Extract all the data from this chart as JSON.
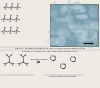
{
  "bg_color": "#eeebe5",
  "line_color": "#333333",
  "text_color": "#222222",
  "img_colors": [
    "#8eaab8",
    "#a0bbc8",
    "#b0ccd8",
    "#7899a8",
    "#95b0be",
    "#c5d8e0",
    "#6d8fa0",
    "#adc2cc",
    "#d0e0e8",
    "#88a5b5"
  ],
  "arrow_color": "#444444",
  "poly_label": "Polymerization",
  "bottom_label1": "Figure 2. Schematic diagram of",
  "bottom_label2": "caprolactam polymerization in the",
  "bottom_label3": "presence of organically modified lamellar nanofillers",
  "capro_label": "Caprolactam monomers",
  "scale_bar_label": "200nm"
}
